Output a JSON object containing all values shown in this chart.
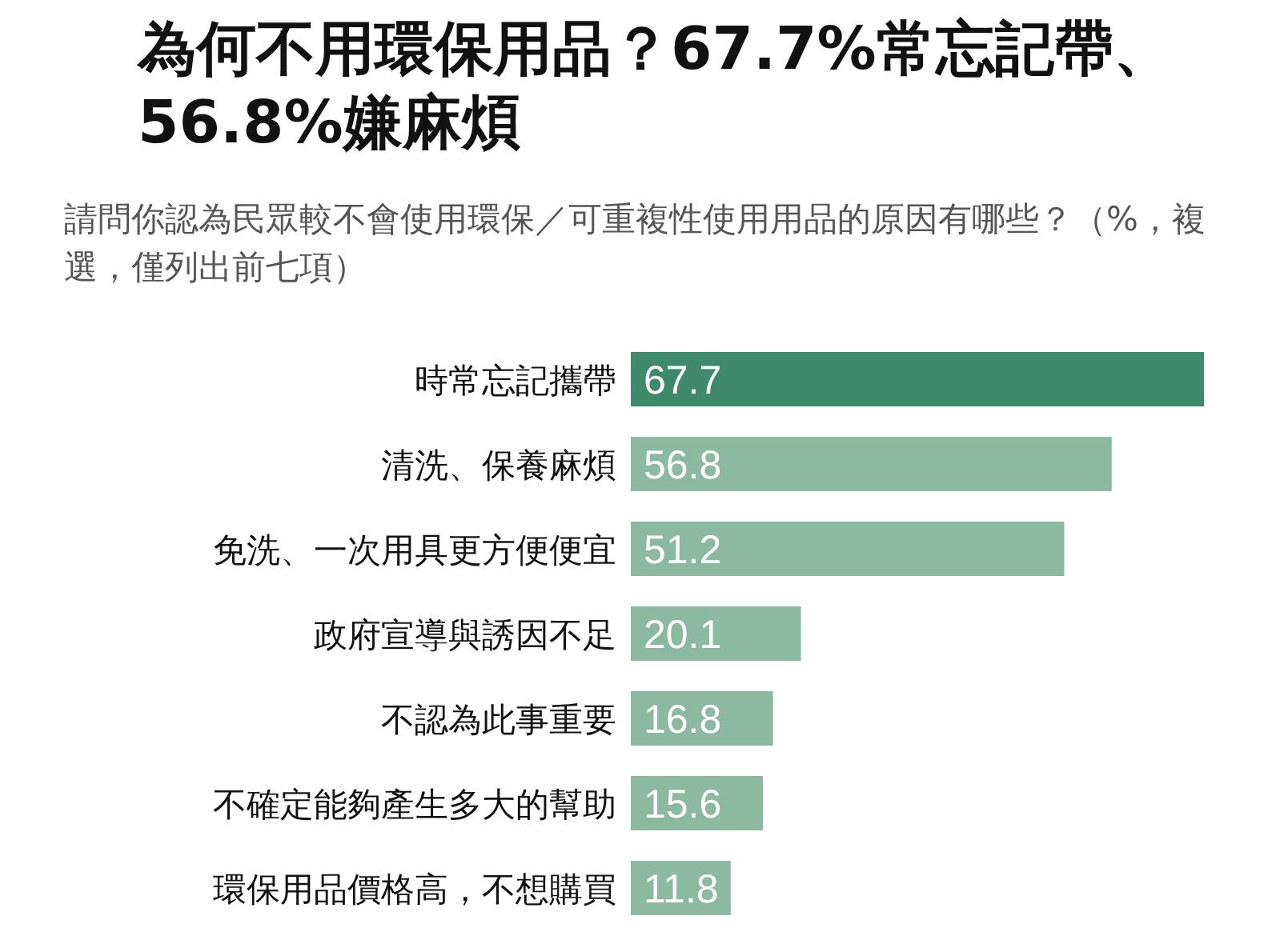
{
  "chart_data": {
    "type": "bar",
    "orientation": "horizontal",
    "title": "為何不用環保用品？67.7%常忘記帶、56.8%嫌麻煩",
    "subtitle": "請問你認為民眾較不會使用環保／可重複性使用用品的原因有哪些？（%，複選，僅列出前七項）",
    "categories": [
      "時常忘記攜帶",
      "清洗、保養麻煩",
      "免洗、一次用具更方便便宜",
      "政府宣導與誘因不足",
      "不認為此事重要",
      "不確定能夠產生多大的幫助",
      "環保用品價格高，不想購買"
    ],
    "values": [
      67.7,
      56.8,
      51.2,
      20.1,
      16.8,
      15.6,
      11.8
    ],
    "colors": [
      "#3f8a6c",
      "#8bb9a1",
      "#8bb9a1",
      "#8bb9a1",
      "#8bb9a1",
      "#8bb9a1",
      "#8bb9a1"
    ],
    "data_labels": true
  }
}
